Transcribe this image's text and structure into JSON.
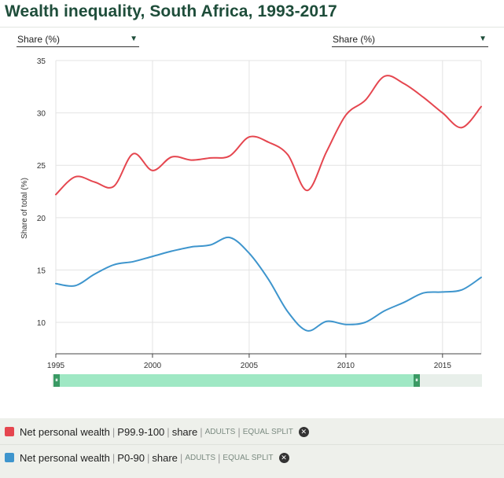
{
  "title": "Wealth inequality, South Africa, 1993-2017",
  "selectors": {
    "left": {
      "value": "Share (%)"
    },
    "right": {
      "value": "Share (%)"
    }
  },
  "icons": {
    "dropdown": "caret-down-icon",
    "remove": "close-circle-icon",
    "handle": "drag-handle-icon"
  },
  "colors": {
    "red_series": "#e5464f",
    "blue_series": "#3e95cd",
    "title": "#1e4d3a",
    "slider_range": "#9fe8c4"
  },
  "chart_data": {
    "type": "line",
    "ylabel": "Share of total (%)",
    "xlim": [
      1995,
      2017
    ],
    "ylim": [
      7,
      35
    ],
    "x_ticks": [
      1995,
      2000,
      2005,
      2010,
      2015
    ],
    "y_ticks": [
      10,
      15,
      20,
      25,
      30,
      35
    ],
    "grid": true,
    "x": [
      1995,
      1996,
      1997,
      1998,
      1999,
      2000,
      2001,
      2002,
      2003,
      2004,
      2005,
      2006,
      2007,
      2008,
      2009,
      2010,
      2011,
      2012,
      2013,
      2014,
      2015,
      2016,
      2017
    ],
    "series": [
      {
        "name": "Net personal wealth | P99.9-100 | share | ADULTS | EQUAL SPLIT",
        "color": "#e5464f",
        "values": [
          22.2,
          23.9,
          23.4,
          23.0,
          26.1,
          24.5,
          25.8,
          25.5,
          25.7,
          25.9,
          27.7,
          27.2,
          26.0,
          22.6,
          26.3,
          29.8,
          31.2,
          33.5,
          32.8,
          31.5,
          30.0,
          28.6,
          30.6
        ]
      },
      {
        "name": "Net personal wealth | P0-90 | share | ADULTS | EQUAL SPLIT",
        "color": "#3e95cd",
        "values": [
          13.7,
          13.5,
          14.6,
          15.5,
          15.8,
          16.3,
          16.8,
          17.2,
          17.4,
          18.1,
          16.6,
          14.1,
          11.0,
          9.2,
          10.1,
          9.8,
          10.0,
          11.1,
          11.9,
          12.8,
          12.9,
          13.1,
          14.3
        ]
      }
    ]
  },
  "legend": [
    {
      "main": "Net personal wealth",
      "sep1": "|",
      "code": "P99.9-100",
      "sep2": "|",
      "metric": "share",
      "sep3": "|",
      "pop": "ADULTS",
      "sep4": "|",
      "split": "EQUAL SPLIT",
      "remove": "✕",
      "color": "#e5464f"
    },
    {
      "main": "Net personal wealth",
      "sep1": "|",
      "code": "P0-90",
      "sep2": "|",
      "metric": "share",
      "sep3": "|",
      "pop": "ADULTS",
      "sep4": "|",
      "split": "EQUAL SPLIT",
      "remove": "✕",
      "color": "#3e95cd"
    }
  ],
  "slider": {
    "left_handle": "⏸",
    "right_handle": "⏸"
  }
}
